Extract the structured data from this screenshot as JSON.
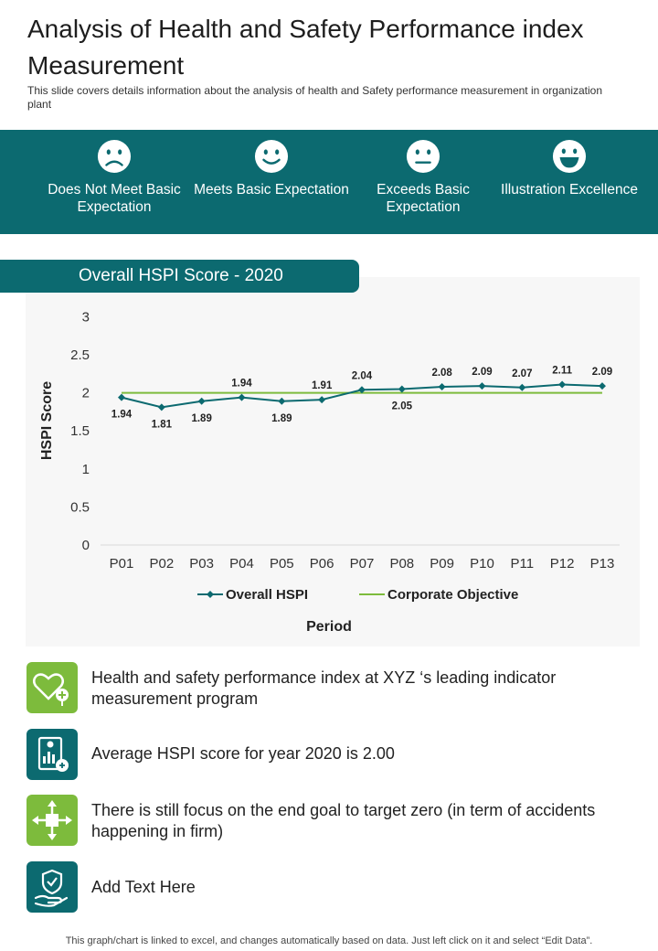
{
  "header": {
    "title": "Analysis of Health and Safety Performance index Measurement",
    "subtitle": "This slide covers details information about the analysis of health and Safety performance measurement in organization plant"
  },
  "levels": [
    {
      "label": "Does Not Meet Basic Expectation",
      "icon": "sad-face-icon"
    },
    {
      "label": "Meets Basic Expectation",
      "icon": "smile-face-icon"
    },
    {
      "label": "Exceeds Basic Expectation",
      "icon": "neutral-face-icon"
    },
    {
      "label": "Illustration Excellence",
      "icon": "grin-face-icon"
    }
  ],
  "chart_title": "Overall HSPI Score - 2020",
  "chart_data": {
    "type": "line",
    "categories": [
      "P01",
      "P02",
      "P03",
      "P04",
      "P05",
      "P06",
      "P07",
      "P08",
      "P09",
      "P10",
      "P11",
      "P12",
      "P13"
    ],
    "series": [
      {
        "name": "Overall HSPI",
        "values": [
          1.94,
          1.81,
          1.89,
          1.94,
          1.89,
          1.91,
          2.04,
          2.05,
          2.08,
          2.09,
          2.07,
          2.11,
          2.09
        ],
        "color": "#0c6a70"
      },
      {
        "name": "Corporate Objective",
        "values": [
          2,
          2,
          2,
          2,
          2,
          2,
          2,
          2,
          2,
          2,
          2,
          2,
          2
        ],
        "color": "#7dbb3c"
      }
    ],
    "xlabel": "Period",
    "ylabel": "HSPI Score",
    "ylim": [
      0,
      3
    ],
    "yticks": [
      "0",
      "0.5",
      "1",
      "1.5",
      "2",
      "2.5",
      "3"
    ],
    "data_labels": [
      "1.94",
      "1.81",
      "1.89",
      "1.94",
      "1.89",
      "1.91",
      "2.04",
      "2.05",
      "2.08",
      "2.09",
      "2.07",
      "2.11",
      "2.09"
    ],
    "grid": false,
    "legend_position": "bottom"
  },
  "bullets": [
    {
      "text": "Health and safety performance index at XYZ ‘s leading indicator measurement program",
      "icon": "heart-plus-icon",
      "color": "#7dbb3c"
    },
    {
      "text": "Average HSPI score for year 2020 is 2.00",
      "icon": "report-chart-icon",
      "color": "#0c6a70"
    },
    {
      "text": "There is still focus on the end goal to target zero (in term of accidents happening in firm)",
      "icon": "focus-arrows-icon",
      "color": "#7dbb3c"
    },
    {
      "text": "Add Text Here",
      "icon": "shield-hand-icon",
      "color": "#0c6a70"
    }
  ],
  "footnote": "This graph/chart is linked to excel, and changes automatically based on data. Just left click on it and select “Edit Data”."
}
